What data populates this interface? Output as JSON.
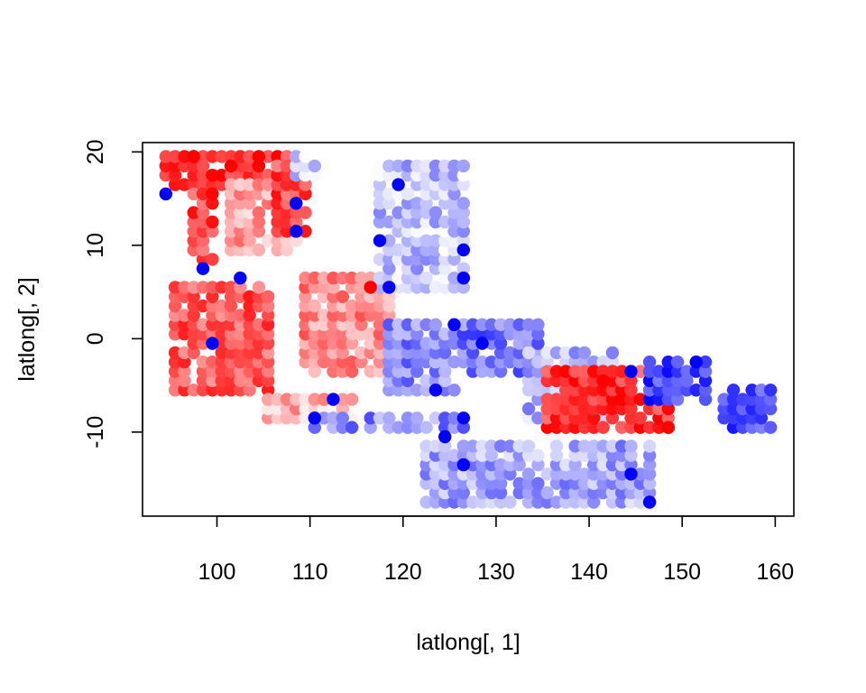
{
  "chart_data": {
    "type": "scatter",
    "title": "",
    "xlabel": "latlong[, 1]",
    "ylabel": "latlong[, 2]",
    "xlim": [
      92,
      162
    ],
    "ylim": [
      -19,
      21
    ],
    "xticks": [
      100,
      110,
      120,
      130,
      140,
      150,
      160
    ],
    "yticks": [
      -10,
      0,
      10,
      20
    ],
    "grid": false,
    "legend": "none",
    "color_scale": {
      "low": "#0000FF",
      "mid": "#FFFFFF",
      "high": "#FF0000"
    },
    "clusters": [
      {
        "id": "burma-thailand-top",
        "x": [
          94,
          108
        ],
        "y": [
          16,
          19.5
        ],
        "v": 0.8
      },
      {
        "id": "burma-west-coast",
        "x": [
          97,
          100
        ],
        "y": [
          8,
          16
        ],
        "v": 0.75
      },
      {
        "id": "indochina-inland",
        "x": [
          101,
          109
        ],
        "y": [
          9,
          17
        ],
        "v": 0.35
      },
      {
        "id": "vietnam-coast",
        "x": [
          106,
          110
        ],
        "y": [
          11,
          19
        ],
        "v": 0.7
      },
      {
        "id": "china-south-edge",
        "x": [
          108,
          111
        ],
        "y": [
          17,
          19.5
        ],
        "v": -0.15
      },
      {
        "id": "sumatra",
        "x": [
          95,
          106
        ],
        "y": [
          -6,
          6
        ],
        "v": 0.65
      },
      {
        "id": "java",
        "x": [
          105,
          115
        ],
        "y": [
          -8.5,
          -6
        ],
        "v": 0.3
      },
      {
        "id": "borneo",
        "x": [
          109,
          119
        ],
        "y": [
          -4,
          6.5
        ],
        "v": 0.45
      },
      {
        "id": "lesser-sunda",
        "x": [
          110,
          127
        ],
        "y": [
          -10,
          -8
        ],
        "v": -0.45
      },
      {
        "id": "philippines",
        "x": [
          117,
          127
        ],
        "y": [
          5,
          19
        ],
        "v": -0.25
      },
      {
        "id": "sulawesi",
        "x": [
          118,
          126
        ],
        "y": [
          -6,
          2
        ],
        "v": -0.45
      },
      {
        "id": "maluku",
        "x": [
          126,
          135
        ],
        "y": [
          -4,
          2
        ],
        "v": -0.55
      },
      {
        "id": "new-guinea-north",
        "x": [
          133,
          143
        ],
        "y": [
          -9,
          -1
        ],
        "v": -0.3
      },
      {
        "id": "new-guinea-south",
        "x": [
          135,
          149
        ],
        "y": [
          -10,
          -3.5
        ],
        "v": 0.8
      },
      {
        "id": "new-britain",
        "x": [
          146,
          153
        ],
        "y": [
          -7,
          -2
        ],
        "v": -0.75
      },
      {
        "id": "solomon-islands",
        "x": [
          154,
          160
        ],
        "y": [
          -10,
          -5
        ],
        "v": -0.7
      },
      {
        "id": "northern-australia",
        "x": [
          122,
          147
        ],
        "y": [
          -18,
          -11.5
        ],
        "v": -0.35
      }
    ],
    "highlights": [
      {
        "x": 94.5,
        "y": 15.5,
        "v": -1
      },
      {
        "x": 108.5,
        "y": 14.5,
        "v": -1
      },
      {
        "x": 108.5,
        "y": 11.5,
        "v": -1
      },
      {
        "x": 98.5,
        "y": 7.5,
        "v": -1
      },
      {
        "x": 102.5,
        "y": 6.5,
        "v": -1
      },
      {
        "x": 99.5,
        "y": -0.5,
        "v": -1
      },
      {
        "x": 118.5,
        "y": 5.5,
        "v": -1
      },
      {
        "x": 119.5,
        "y": 16.5,
        "v": -1
      },
      {
        "x": 117.5,
        "y": 10.5,
        "v": -1
      },
      {
        "x": 126.5,
        "y": 9.5,
        "v": -1
      },
      {
        "x": 126.5,
        "y": 6.5,
        "v": -1
      },
      {
        "x": 125.5,
        "y": 1.5,
        "v": -1
      },
      {
        "x": 128.5,
        "y": -0.5,
        "v": -1
      },
      {
        "x": 124.5,
        "y": -10.5,
        "v": -1
      },
      {
        "x": 126.5,
        "y": -8.5,
        "v": -1
      },
      {
        "x": 112.5,
        "y": -6.5,
        "v": -1
      },
      {
        "x": 110.5,
        "y": -8.5,
        "v": -1
      },
      {
        "x": 151.5,
        "y": -2.5,
        "v": -1
      },
      {
        "x": 144.5,
        "y": -3.5,
        "v": -1
      },
      {
        "x": 146.5,
        "y": -17.5,
        "v": -1
      },
      {
        "x": 144.5,
        "y": -14.5,
        "v": -1
      },
      {
        "x": 126.5,
        "y": -13.5,
        "v": -1
      },
      {
        "x": 123.5,
        "y": -5.5,
        "v": -1
      },
      {
        "x": 97.5,
        "y": 19.5,
        "v": 1
      },
      {
        "x": 101.5,
        "y": 18.5,
        "v": 1
      },
      {
        "x": 104.5,
        "y": 19.5,
        "v": 1
      },
      {
        "x": 148.5,
        "y": -9.5,
        "v": 1
      },
      {
        "x": 141.5,
        "y": -4.5,
        "v": 1
      },
      {
        "x": 116.5,
        "y": 5.5,
        "v": 1
      }
    ]
  }
}
